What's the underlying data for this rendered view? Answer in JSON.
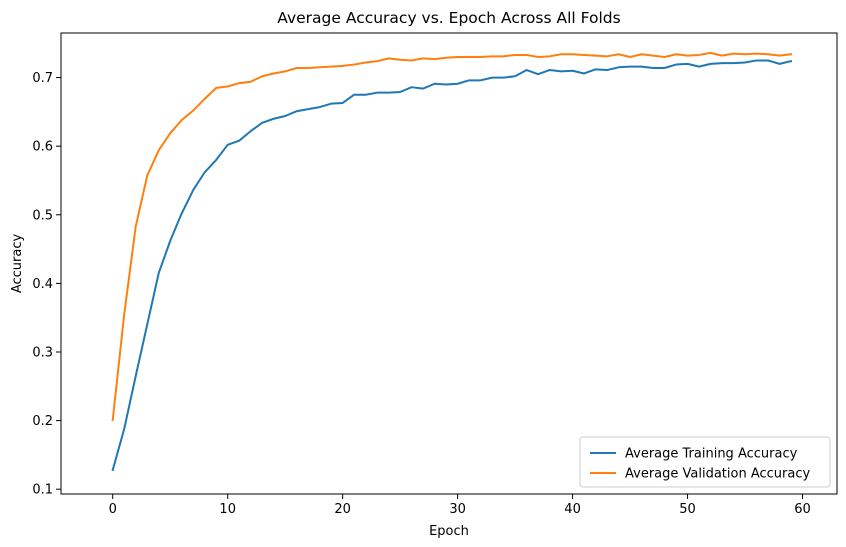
{
  "chart_data": {
    "type": "line",
    "title": "Average Accuracy vs. Epoch Across All Folds",
    "xlabel": "Epoch",
    "ylabel": "Accuracy",
    "xlim": [
      -4.5,
      63
    ],
    "ylim": [
      0.093,
      0.765
    ],
    "xticks": [
      0,
      10,
      20,
      30,
      40,
      50,
      60
    ],
    "yticks": [
      0.1,
      0.2,
      0.3,
      0.4,
      0.5,
      0.6,
      0.7
    ],
    "grid": false,
    "legend_position": "lower-right",
    "x": [
      0,
      1,
      2,
      3,
      4,
      5,
      6,
      7,
      8,
      9,
      10,
      11,
      12,
      13,
      14,
      15,
      16,
      17,
      18,
      19,
      20,
      21,
      22,
      23,
      24,
      25,
      26,
      27,
      28,
      29,
      30,
      31,
      32,
      33,
      34,
      35,
      36,
      37,
      38,
      39,
      40,
      41,
      42,
      43,
      44,
      45,
      46,
      47,
      48,
      49,
      50,
      51,
      52,
      53,
      54,
      55,
      56,
      57,
      58,
      59
    ],
    "series": [
      {
        "name": "Average Training Accuracy",
        "color": "#1f77b4",
        "values": [
          0.128,
          0.188,
          0.265,
          0.34,
          0.415,
          0.462,
          0.502,
          0.536,
          0.562,
          0.58,
          0.602,
          0.608,
          0.622,
          0.634,
          0.64,
          0.644,
          0.651,
          0.654,
          0.657,
          0.662,
          0.663,
          0.675,
          0.675,
          0.678,
          0.678,
          0.679,
          0.686,
          0.684,
          0.691,
          0.69,
          0.691,
          0.696,
          0.696,
          0.7,
          0.7,
          0.702,
          0.711,
          0.705,
          0.711,
          0.709,
          0.71,
          0.706,
          0.712,
          0.711,
          0.715,
          0.716,
          0.716,
          0.714,
          0.714,
          0.719,
          0.72,
          0.716,
          0.72,
          0.721,
          0.721,
          0.722,
          0.725,
          0.725,
          0.72,
          0.724
        ]
      },
      {
        "name": "Average Validation Accuracy",
        "color": "#ff7f0e",
        "values": [
          0.201,
          0.355,
          0.483,
          0.557,
          0.594,
          0.619,
          0.638,
          0.652,
          0.669,
          0.685,
          0.687,
          0.692,
          0.694,
          0.702,
          0.706,
          0.709,
          0.714,
          0.714,
          0.715,
          0.716,
          0.717,
          0.719,
          0.722,
          0.724,
          0.728,
          0.726,
          0.725,
          0.728,
          0.727,
          0.729,
          0.73,
          0.73,
          0.73,
          0.731,
          0.731,
          0.733,
          0.733,
          0.73,
          0.731,
          0.734,
          0.734,
          0.733,
          0.732,
          0.731,
          0.734,
          0.73,
          0.734,
          0.732,
          0.73,
          0.734,
          0.732,
          0.733,
          0.736,
          0.732,
          0.735,
          0.734,
          0.735,
          0.734,
          0.732,
          0.734
        ]
      }
    ]
  }
}
